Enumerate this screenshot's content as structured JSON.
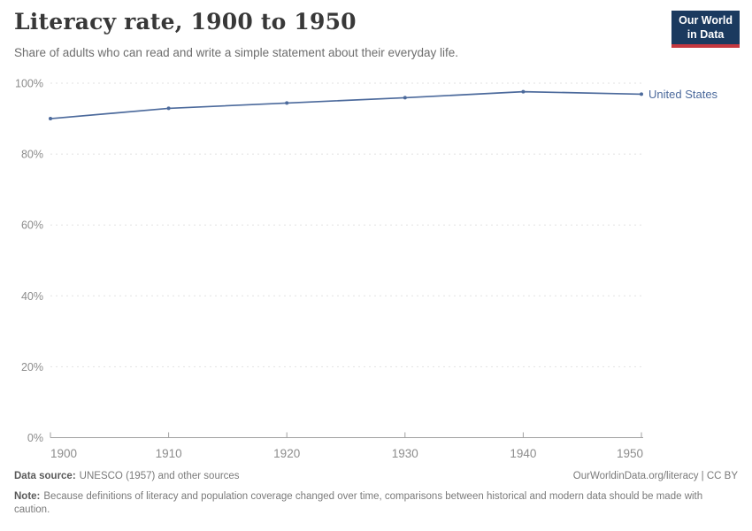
{
  "header": {
    "title": "Literacy rate, 1900 to 1950",
    "subtitle": "Share of adults who can read and write a simple statement about their everyday life.",
    "logo": {
      "line1": "Our World",
      "line2": "in Data"
    }
  },
  "chart_data": {
    "type": "line",
    "title": "Literacy rate, 1900 to 1950",
    "x": [
      1900,
      1910,
      1920,
      1930,
      1940,
      1950
    ],
    "xtick_labels": [
      "1900",
      "1910",
      "1920",
      "1930",
      "1940",
      "1950"
    ],
    "series": [
      {
        "name": "United States",
        "values": [
          90.0,
          92.9,
          94.4,
          95.9,
          97.6,
          96.9
        ],
        "color": "#4C6A9C"
      }
    ],
    "xlim": [
      1900,
      1950
    ],
    "ylim": [
      0,
      100
    ],
    "yticks": [
      0,
      20,
      40,
      60,
      80,
      100
    ],
    "ytick_labels": [
      "0%",
      "20%",
      "40%",
      "60%",
      "80%",
      "100%"
    ],
    "grid": "dashed horizontal",
    "legend_position": "right-of-line-end",
    "xlabel": "",
    "ylabel": ""
  },
  "footer": {
    "source_label": "Data source:",
    "source_value": "UNESCO (1957) and other sources",
    "link": "OurWorldinData.org/literacy | CC BY",
    "note_label": "Note:",
    "note_text": "Because definitions of literacy and population coverage changed over time, comparisons between historical and modern data should be made with caution."
  },
  "colors": {
    "series_blue": "#4C6A9C",
    "logo_bg": "#1b3a5f",
    "logo_accent": "#c5383f",
    "gridline": "#e2e2e2",
    "axis": "#a1a1a1"
  }
}
